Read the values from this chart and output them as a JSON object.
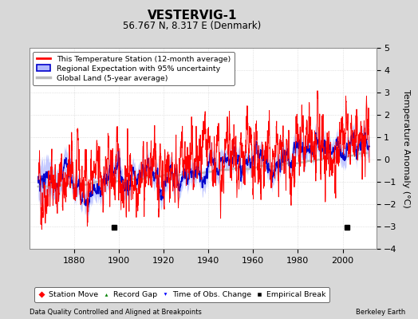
{
  "title": "VESTERVIG-1",
  "subtitle": "56.767 N, 8.317 E (Denmark)",
  "ylabel": "Temperature Anomaly (°C)",
  "xlabel_left": "Data Quality Controlled and Aligned at Breakpoints",
  "xlabel_right": "Berkeley Earth",
  "ylim": [
    -4,
    5
  ],
  "xlim": [
    1860,
    2015
  ],
  "xticks": [
    1880,
    1900,
    1920,
    1940,
    1960,
    1980,
    2000
  ],
  "yticks": [
    -4,
    -3,
    -2,
    -1,
    0,
    1,
    2,
    3,
    4,
    5
  ],
  "bg_color": "#d8d8d8",
  "plot_bg_color": "#ffffff",
  "grid_color": "#cccccc",
  "empirical_breaks": [
    1898,
    2002
  ],
  "legend_labels": [
    "This Temperature Station (12-month average)",
    "Regional Expectation with 95% uncertainty",
    "Global Land (5-year average)"
  ],
  "station_line_color": "#ff0000",
  "regional_line_color": "#0000cc",
  "regional_fill_color": "#b0b8ff",
  "global_line_color": "#bbbbbb",
  "seed": 42
}
